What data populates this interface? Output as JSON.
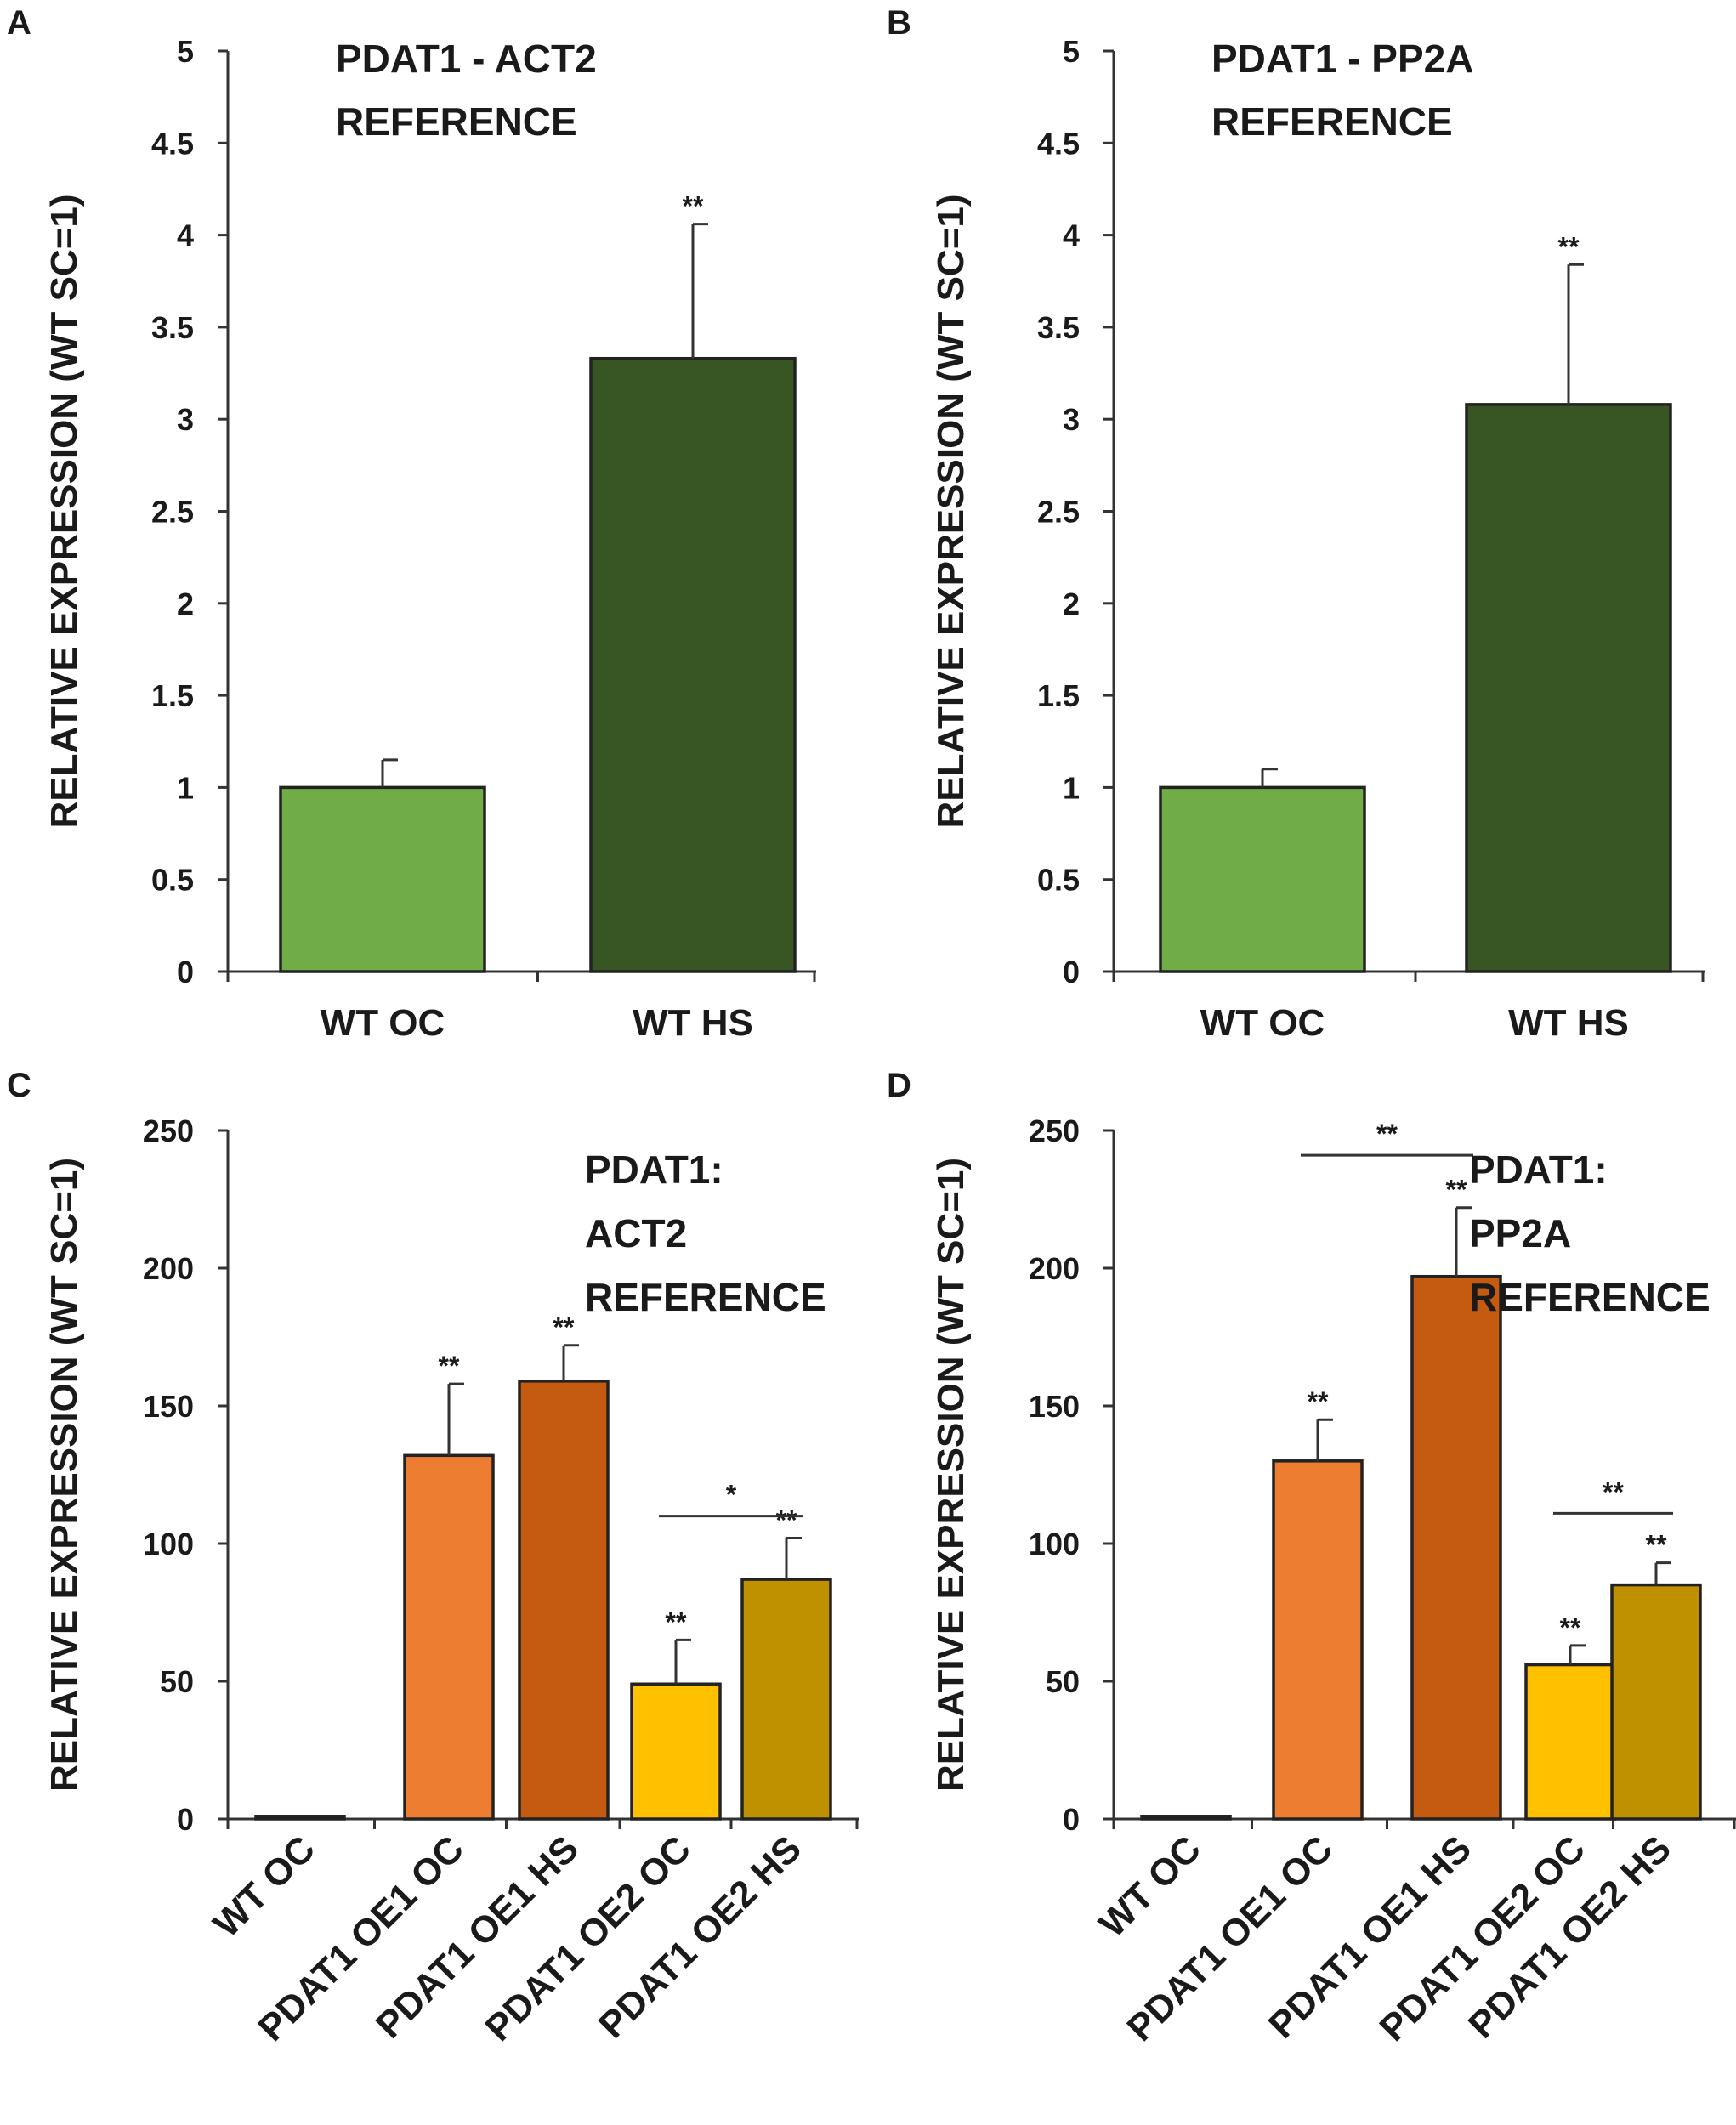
{
  "chart_data": [
    {
      "type": "bar",
      "panel": "A",
      "annotation": [
        "PDAT1 - ACT2",
        "REFERENCE"
      ],
      "ylabel": "RELATIVE EXPRESSION (WT SC=1)",
      "ylim": [
        0,
        5
      ],
      "yticks": [
        "0",
        "0.5",
        "1",
        "1.5",
        "2",
        "2.5",
        "3",
        "3.5",
        "4",
        "4.5",
        "5"
      ],
      "categories": [
        "WT OC",
        "WT HS"
      ],
      "values": [
        1.0,
        3.33
      ],
      "errors": [
        0.15,
        0.73
      ],
      "colors": [
        "#70ad47",
        "#375623"
      ],
      "significance": [
        "",
        "**"
      ],
      "brackets": []
    },
    {
      "type": "bar",
      "panel": "B",
      "annotation": [
        "PDAT1 - PP2A",
        "REFERENCE"
      ],
      "ylabel": "RELATIVE EXPRESSION (WT SC=1)",
      "ylim": [
        0,
        5
      ],
      "yticks": [
        "0",
        "0.5",
        "1",
        "1.5",
        "2",
        "2.5",
        "3",
        "3.5",
        "4",
        "4.5",
        "5"
      ],
      "categories": [
        "WT OC",
        "WT HS"
      ],
      "values": [
        1.0,
        3.08
      ],
      "errors": [
        0.1,
        0.76
      ],
      "colors": [
        "#70ad47",
        "#375623"
      ],
      "significance": [
        "",
        "**"
      ],
      "brackets": []
    },
    {
      "type": "bar",
      "panel": "C",
      "annotation": [
        "PDAT1:",
        "ACT2",
        "REFERENCE"
      ],
      "ylabel": "RELATIVE EXPRESSION (WT SC=1)",
      "ylim": [
        0,
        250
      ],
      "yticks": [
        "0",
        "50",
        "100",
        "150",
        "200",
        "250"
      ],
      "categories": [
        "WT OC",
        "PDAT1 OE1 OC",
        "PDAT1 OE1 HS",
        "PDAT1 OE2 OC",
        "PDAT1 OE2 HS"
      ],
      "values": [
        1,
        132,
        159,
        49,
        87
      ],
      "errors": [
        0,
        26,
        13,
        16,
        15
      ],
      "colors": [
        "#ed7d31",
        "#ed7d31",
        "#c55a11",
        "#ffc000",
        "#bf9000"
      ],
      "significance": [
        "",
        "**",
        "**",
        "**",
        "**"
      ],
      "brackets": [
        {
          "from": 3,
          "to": 4,
          "value": 110,
          "label": "*"
        }
      ]
    },
    {
      "type": "bar",
      "panel": "D",
      "annotation": [
        "PDAT1:",
        "PP2A",
        "REFERENCE"
      ],
      "ylabel": "RELATIVE EXPRESSION (WT SC=1)",
      "ylim": [
        0,
        250
      ],
      "yticks": [
        "0",
        "50",
        "100",
        "150",
        "200",
        "250"
      ],
      "categories": [
        "WT OC",
        "PDAT1 OE1 OC",
        "PDAT1 OE1 HS",
        "PDAT1 OE2 OC",
        "PDAT1 OE2 HS"
      ],
      "values": [
        1,
        130,
        197,
        56,
        85
      ],
      "errors": [
        0,
        15,
        25,
        7,
        8
      ],
      "colors": [
        "#ed7d31",
        "#ed7d31",
        "#c55a11",
        "#ffc000",
        "#bf9000"
      ],
      "significance": [
        "",
        "**",
        "**",
        "**",
        "**"
      ],
      "brackets": [
        {
          "from": 1,
          "to": 2,
          "value": 241,
          "label": "**"
        },
        {
          "from": 3,
          "to": 4,
          "value": 111,
          "label": "**"
        }
      ]
    }
  ]
}
